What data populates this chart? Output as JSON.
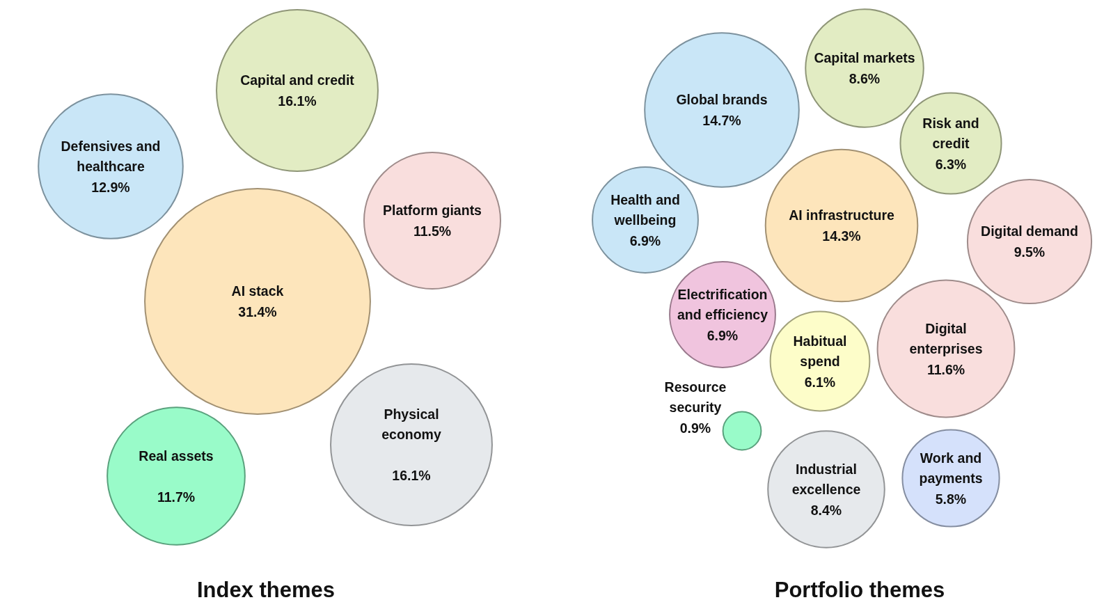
{
  "chart_data": [
    {
      "type": "other",
      "title": "Index themes",
      "categories": [
        "Capital and credit",
        "Defensives and healthcare",
        "Platform giants",
        "AI stack",
        "Physical economy",
        "Real assets"
      ],
      "values": [
        16.1,
        12.9,
        11.5,
        31.4,
        16.1,
        11.7
      ],
      "value_labels": [
        "16.1%",
        "12.9%",
        "11.5%",
        "31.4%",
        "16.1%",
        "11.7%"
      ],
      "colors": [
        "#e2ecc3",
        "#c9e6f7",
        "#f9dedd",
        "#fde5bb",
        "#e6e9ec",
        "#99fbc9"
      ]
    },
    {
      "type": "other",
      "title": "Portfolio themes",
      "categories": [
        "Global brands",
        "Capital markets",
        "Risk and credit",
        "Health and wellbeing",
        "AI infrastructure",
        "Digital demand",
        "Electrification and efficiency",
        "Habitual spend",
        "Digital enterprises",
        "Resource security",
        "Industrial excellence",
        "Work and payments"
      ],
      "values": [
        14.7,
        8.6,
        6.3,
        6.9,
        14.3,
        9.5,
        6.9,
        6.1,
        11.6,
        0.9,
        8.4,
        5.8
      ],
      "value_labels": [
        "14.7%",
        "8.6%",
        "6.3%",
        "6.9%",
        "14.3%",
        "9.5%",
        "6.9%",
        "6.1%",
        "11.6%",
        "0.9%",
        "8.4%",
        "5.8%"
      ],
      "colors": [
        "#c9e6f7",
        "#e2ecc3",
        "#e2ecc3",
        "#c9e6f7",
        "#fde5bb",
        "#f9dedd",
        "#f0c4de",
        "#fdfdc9",
        "#f9dedd",
        "#99fbc9",
        "#e6e9ec",
        "#d5e1fb"
      ]
    }
  ]
}
